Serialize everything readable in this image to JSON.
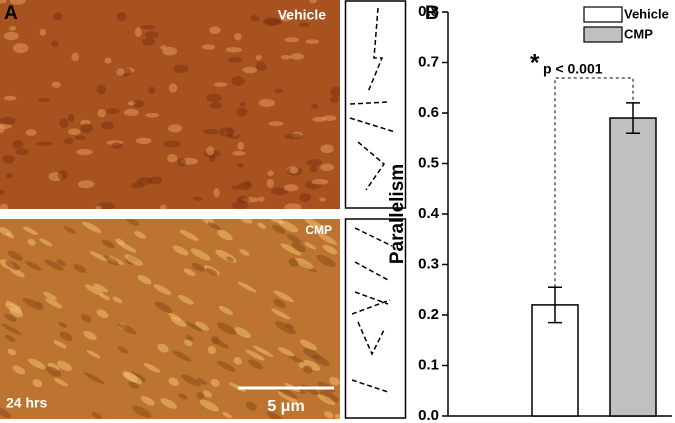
{
  "panel_a": {
    "label": "A",
    "top_image_label": "Vehicle",
    "bottom_image_label": "CMP",
    "time_label": "24 hrs",
    "scale_label": "5 μm"
  },
  "chart_data": {
    "type": "bar",
    "panel_label": "B",
    "y_label": "Parallelism",
    "series": [
      {
        "name": "Vehicle",
        "color": "#ffffff",
        "values": [
          0.22
        ],
        "errors": [
          0.035
        ]
      },
      {
        "name": "CMP",
        "color": "#c0c0c0",
        "values": [
          0.59
        ],
        "errors": [
          0.03
        ]
      }
    ],
    "ylim": [
      0,
      0.8
    ],
    "yticks": [
      {
        "value": 0,
        "label": "0.0"
      },
      0.1,
      0.2,
      0.3,
      0.4,
      0.5,
      0.6,
      0.7,
      0.8
    ],
    "significance": "*",
    "p_label": "p < 0.001"
  }
}
